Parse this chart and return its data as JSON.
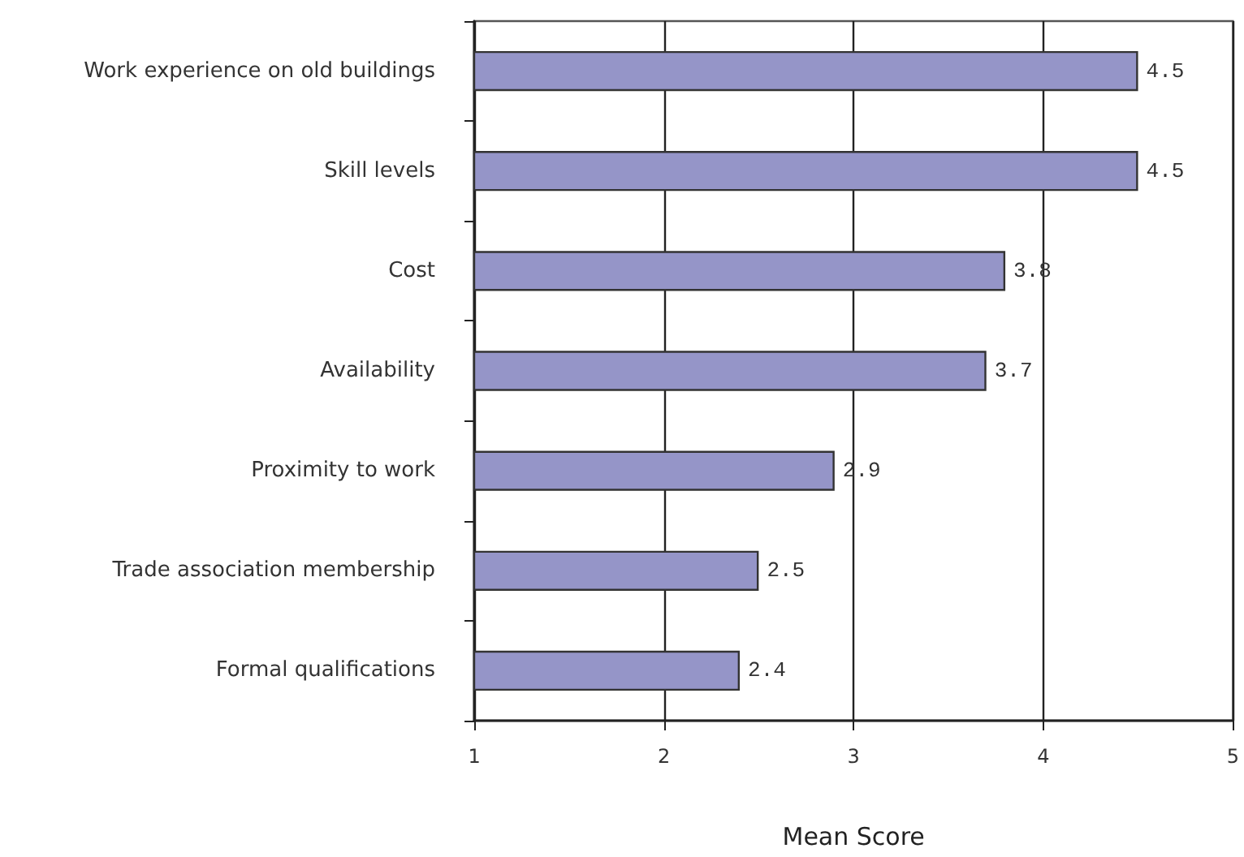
{
  "chart_data": {
    "type": "bar",
    "orientation": "horizontal",
    "categories": [
      "Work experience on old buildings",
      "Skill levels",
      "Cost",
      "Availability",
      "Proximity to work",
      "Trade association membership",
      "Formal qualifications"
    ],
    "values": [
      4.5,
      4.5,
      3.8,
      3.7,
      2.9,
      2.5,
      2.4
    ],
    "color": "#9595c8",
    "xlim": [
      1,
      5
    ],
    "xticks": [
      1,
      2,
      3,
      4,
      5
    ],
    "xlabel": "Mean Score",
    "grid": "x",
    "data_labels": true
  }
}
